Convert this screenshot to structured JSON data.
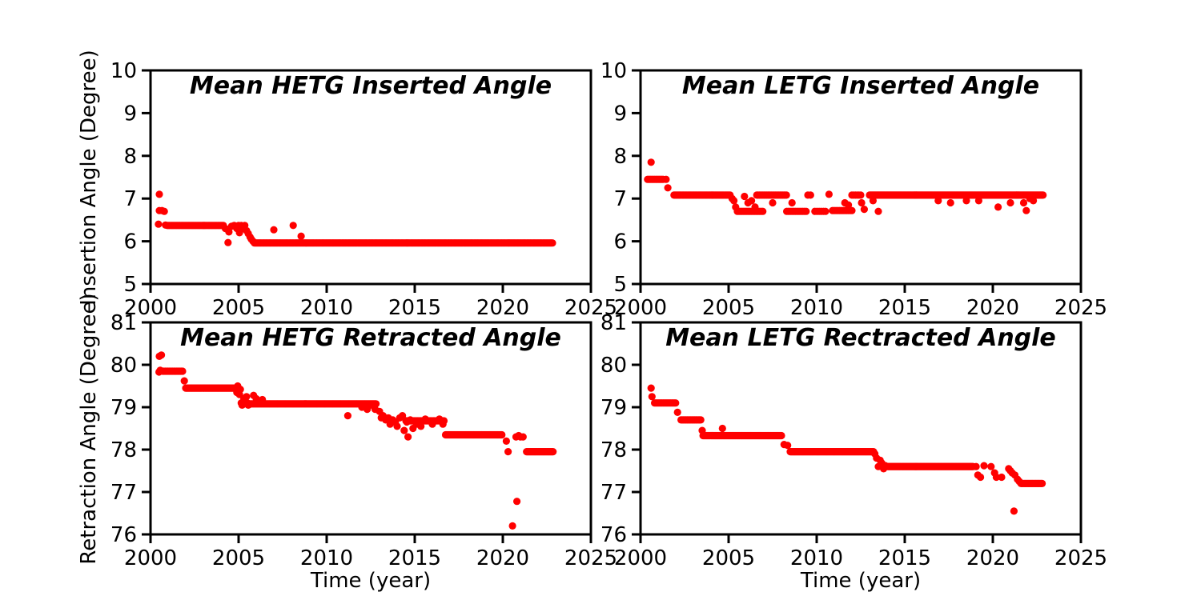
{
  "figure": {
    "background": "#ffffff",
    "marker_color": "#ff0000",
    "axis_color": "#000000",
    "xlabel": "Time (year)",
    "ylabel_top": "Insertion Angle (Degree)",
    "ylabel_bottom": "Retraction Angle (Degree)"
  },
  "chart_data": [
    {
      "type": "scatter",
      "title": "Mean HETG Inserted Angle",
      "ylabel": "Insertion Angle (Degree)",
      "xlim": [
        2000,
        2025
      ],
      "ylim": [
        5,
        10
      ],
      "xticks": [
        2000,
        2005,
        2010,
        2015,
        2020,
        2025
      ],
      "yticks": [
        5,
        6,
        7,
        8,
        9,
        10
      ],
      "legend": "none",
      "grid": false,
      "series": [
        {
          "name": "mean-hetg-inserted",
          "runs": [
            {
              "x0": 2000.95,
              "x1": 2004.15,
              "y": 6.37,
              "step": 0.06
            },
            {
              "x0": 2005.9,
              "x1": 2022.85,
              "y": 5.96,
              "step": 0.06
            }
          ],
          "points": [
            [
              2000.5,
              7.1
            ],
            [
              2000.5,
              6.72
            ],
            [
              2000.65,
              6.72
            ],
            [
              2000.78,
              6.7
            ],
            [
              2000.45,
              6.4
            ],
            [
              2000.85,
              6.38
            ],
            [
              2004.25,
              6.3
            ],
            [
              2004.4,
              5.97
            ],
            [
              2004.45,
              6.22
            ],
            [
              2004.6,
              6.35
            ],
            [
              2004.75,
              6.37
            ],
            [
              2004.9,
              6.3
            ],
            [
              2005.0,
              6.37
            ],
            [
              2005.05,
              6.2
            ],
            [
              2005.15,
              6.37
            ],
            [
              2005.25,
              6.3
            ],
            [
              2005.35,
              6.37
            ],
            [
              2005.45,
              6.25
            ],
            [
              2005.55,
              6.18
            ],
            [
              2005.65,
              6.1
            ],
            [
              2005.72,
              6.05
            ],
            [
              2005.82,
              6.0
            ],
            [
              2007.0,
              6.27
            ],
            [
              2008.1,
              6.37
            ],
            [
              2008.55,
              6.12
            ]
          ]
        }
      ]
    },
    {
      "type": "scatter",
      "title": "Mean LETG Inserted Angle",
      "ylabel": "Insertion Angle (Degree)",
      "xlim": [
        2000,
        2025
      ],
      "ylim": [
        5,
        10
      ],
      "xticks": [
        2000,
        2005,
        2010,
        2015,
        2020,
        2025
      ],
      "yticks": [
        5,
        6,
        7,
        8,
        9,
        10
      ],
      "legend": "none",
      "grid": false,
      "series": [
        {
          "name": "mean-letg-inserted",
          "runs": [
            {
              "x0": 2000.4,
              "x1": 2001.3,
              "y": 7.45,
              "step": 0.08
            },
            {
              "x0": 2001.9,
              "x1": 2005.1,
              "y": 7.08,
              "step": 0.06
            },
            {
              "x0": 2005.5,
              "x1": 2007.0,
              "y": 6.7,
              "step": 0.09
            },
            {
              "x0": 2006.6,
              "x1": 2008.3,
              "y": 7.08,
              "step": 0.07
            },
            {
              "x0": 2008.3,
              "x1": 2009.4,
              "y": 6.7,
              "step": 0.1
            },
            {
              "x0": 2009.9,
              "x1": 2010.6,
              "y": 6.7,
              "step": 0.12
            },
            {
              "x0": 2010.9,
              "x1": 2012.0,
              "y": 6.72,
              "step": 0.1
            },
            {
              "x0": 2012.0,
              "x1": 2012.5,
              "y": 7.08,
              "step": 0.1
            },
            {
              "x0": 2013.0,
              "x1": 2022.85,
              "y": 7.08,
              "step": 0.05
            }
          ],
          "points": [
            [
              2000.6,
              7.85
            ],
            [
              2001.45,
              7.45
            ],
            [
              2001.55,
              7.25
            ],
            [
              2005.2,
              7.0
            ],
            [
              2005.3,
              6.95
            ],
            [
              2005.4,
              6.8
            ],
            [
              2005.9,
              7.05
            ],
            [
              2006.1,
              6.9
            ],
            [
              2006.3,
              6.95
            ],
            [
              2006.5,
              6.8
            ],
            [
              2007.5,
              6.9
            ],
            [
              2008.6,
              6.9
            ],
            [
              2009.5,
              7.08
            ],
            [
              2009.65,
              7.08
            ],
            [
              2010.7,
              7.1
            ],
            [
              2011.6,
              6.9
            ],
            [
              2011.8,
              6.85
            ],
            [
              2012.55,
              6.9
            ],
            [
              2012.7,
              6.75
            ],
            [
              2013.2,
              6.95
            ],
            [
              2013.5,
              6.7
            ],
            [
              2016.9,
              6.95
            ],
            [
              2017.6,
              6.9
            ],
            [
              2018.5,
              6.95
            ],
            [
              2019.2,
              6.95
            ],
            [
              2020.3,
              6.8
            ],
            [
              2021.0,
              6.9
            ],
            [
              2021.75,
              6.9
            ],
            [
              2021.9,
              6.72
            ],
            [
              2022.1,
              7.0
            ],
            [
              2022.3,
              6.95
            ]
          ]
        }
      ]
    },
    {
      "type": "scatter",
      "title": "Mean HETG Retracted Angle",
      "ylabel": "Retraction Angle (Degree)",
      "xlabel": "Time (year)",
      "xlim": [
        2000,
        2025
      ],
      "ylim": [
        76,
        81
      ],
      "xticks": [
        2000,
        2005,
        2010,
        2015,
        2020,
        2025
      ],
      "yticks": [
        76,
        77,
        78,
        79,
        80,
        81
      ],
      "legend": "none",
      "grid": false,
      "series": [
        {
          "name": "mean-hetg-retracted",
          "runs": [
            {
              "x0": 2000.7,
              "x1": 2001.85,
              "y": 79.85,
              "step": 0.07
            },
            {
              "x0": 2002.0,
              "x1": 2004.85,
              "y": 79.45,
              "step": 0.05
            },
            {
              "x0": 2005.6,
              "x1": 2012.8,
              "y": 79.08,
              "step": 0.045
            },
            {
              "x0": 2014.5,
              "x1": 2016.7,
              "y": 78.68,
              "step": 0.06
            },
            {
              "x0": 2016.75,
              "x1": 2019.95,
              "y": 78.35,
              "step": 0.045
            },
            {
              "x0": 2021.35,
              "x1": 2022.85,
              "y": 77.95,
              "step": 0.05
            }
          ],
          "points": [
            [
              2000.5,
              80.2
            ],
            [
              2000.62,
              80.23
            ],
            [
              2000.48,
              79.83
            ],
            [
              2000.55,
              79.87
            ],
            [
              2001.92,
              79.62
            ],
            [
              2004.9,
              79.35
            ],
            [
              2004.95,
              79.5
            ],
            [
              2005.0,
              79.45
            ],
            [
              2005.05,
              79.3
            ],
            [
              2005.1,
              79.42
            ],
            [
              2005.15,
              79.1
            ],
            [
              2005.2,
              79.05
            ],
            [
              2005.3,
              79.2
            ],
            [
              2005.38,
              79.1
            ],
            [
              2005.45,
              79.25
            ],
            [
              2005.5,
              79.1
            ],
            [
              2005.55,
              79.05
            ],
            [
              2005.85,
              79.28
            ],
            [
              2006.0,
              79.2
            ],
            [
              2006.35,
              79.18
            ],
            [
              2011.2,
              78.8
            ],
            [
              2012.0,
              79.0
            ],
            [
              2012.3,
              78.95
            ],
            [
              2012.55,
              79.05
            ],
            [
              2012.75,
              78.95
            ],
            [
              2013.0,
              78.9
            ],
            [
              2013.1,
              78.75
            ],
            [
              2013.2,
              78.8
            ],
            [
              2013.35,
              78.7
            ],
            [
              2013.5,
              78.75
            ],
            [
              2013.6,
              78.6
            ],
            [
              2013.75,
              78.7
            ],
            [
              2013.9,
              78.65
            ],
            [
              2014.0,
              78.55
            ],
            [
              2014.15,
              78.75
            ],
            [
              2014.3,
              78.8
            ],
            [
              2014.4,
              78.45
            ],
            [
              2014.55,
              78.65
            ],
            [
              2014.62,
              78.3
            ],
            [
              2014.75,
              78.7
            ],
            [
              2014.9,
              78.5
            ],
            [
              2015.1,
              78.6
            ],
            [
              2015.35,
              78.55
            ],
            [
              2015.6,
              78.72
            ],
            [
              2016.0,
              78.6
            ],
            [
              2016.4,
              78.72
            ],
            [
              2016.6,
              78.6
            ],
            [
              2020.2,
              78.2
            ],
            [
              2020.3,
              77.95
            ],
            [
              2020.75,
              78.3
            ],
            [
              2020.9,
              78.33
            ],
            [
              2021.0,
              78.3
            ],
            [
              2021.15,
              78.3
            ],
            [
              2020.55,
              76.2
            ],
            [
              2020.8,
              76.78
            ]
          ]
        }
      ]
    },
    {
      "type": "scatter",
      "title": "Mean LETG Rectracted Angle",
      "ylabel": "Retraction Angle (Degree)",
      "xlabel": "Time (year)",
      "xlim": [
        2000,
        2025
      ],
      "ylim": [
        76,
        81
      ],
      "xticks": [
        2000,
        2005,
        2010,
        2015,
        2020,
        2025
      ],
      "yticks": [
        76,
        77,
        78,
        79,
        80,
        81
      ],
      "legend": "none",
      "grid": false,
      "series": [
        {
          "name": "mean-letg-retracted",
          "runs": [
            {
              "x0": 2000.8,
              "x1": 2002.0,
              "y": 79.1,
              "step": 0.07
            },
            {
              "x0": 2002.3,
              "x1": 2003.45,
              "y": 78.7,
              "step": 0.07
            },
            {
              "x0": 2003.55,
              "x1": 2008.0,
              "y": 78.33,
              "step": 0.05
            },
            {
              "x0": 2008.5,
              "x1": 2013.25,
              "y": 77.95,
              "step": 0.045
            },
            {
              "x0": 2014.0,
              "x1": 2018.9,
              "y": 77.6,
              "step": 0.04
            },
            {
              "x0": 2021.6,
              "x1": 2022.85,
              "y": 77.2,
              "step": 0.06
            }
          ],
          "points": [
            [
              2000.6,
              79.45
            ],
            [
              2000.65,
              79.25
            ],
            [
              2002.1,
              78.88
            ],
            [
              2003.5,
              78.45
            ],
            [
              2004.65,
              78.5
            ],
            [
              2008.15,
              78.12
            ],
            [
              2008.35,
              78.1
            ],
            [
              2013.3,
              77.9
            ],
            [
              2013.4,
              77.8
            ],
            [
              2013.5,
              77.6
            ],
            [
              2013.6,
              77.75
            ],
            [
              2013.7,
              77.68
            ],
            [
              2013.8,
              77.55
            ],
            [
              2013.9,
              77.62
            ],
            [
              2019.05,
              77.6
            ],
            [
              2019.15,
              77.4
            ],
            [
              2019.3,
              77.35
            ],
            [
              2019.5,
              77.62
            ],
            [
              2019.9,
              77.6
            ],
            [
              2020.1,
              77.45
            ],
            [
              2020.2,
              77.35
            ],
            [
              2020.5,
              77.35
            ],
            [
              2020.9,
              77.55
            ],
            [
              2021.0,
              77.5
            ],
            [
              2021.1,
              77.45
            ],
            [
              2021.25,
              77.4
            ],
            [
              2021.4,
              77.3
            ],
            [
              2021.5,
              77.25
            ],
            [
              2021.2,
              76.55
            ]
          ]
        }
      ]
    }
  ]
}
